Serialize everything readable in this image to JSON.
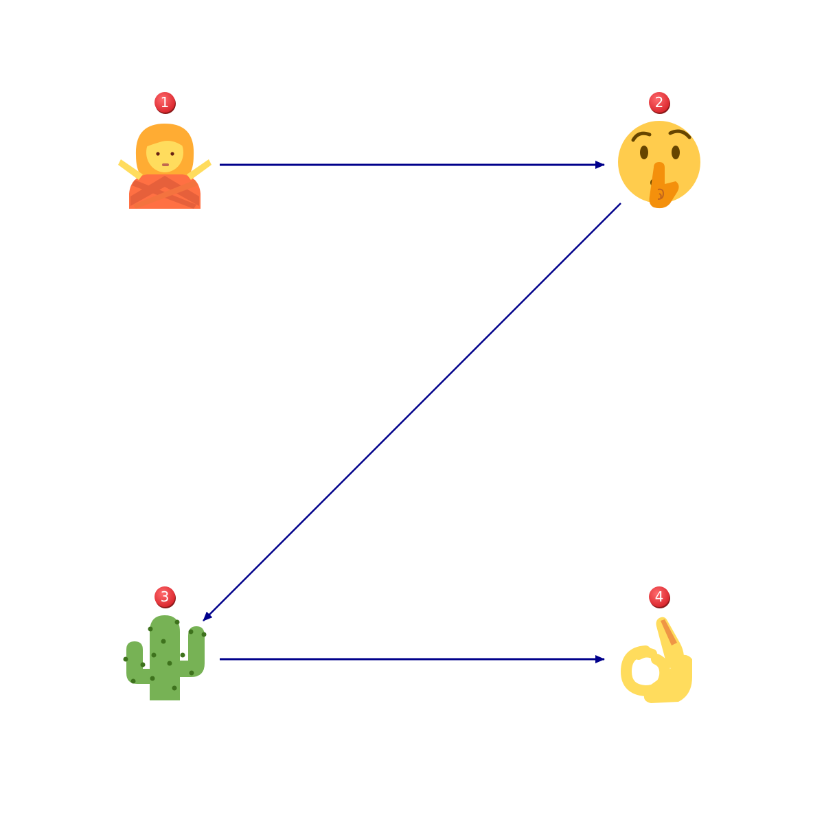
{
  "diagram": {
    "nodes": [
      {
        "id": "1",
        "badge": "1",
        "icon": "person-gesturing-no-icon"
      },
      {
        "id": "2",
        "badge": "2",
        "icon": "shushing-face-icon"
      },
      {
        "id": "3",
        "badge": "3",
        "icon": "cactus-icon"
      },
      {
        "id": "4",
        "badge": "4",
        "icon": "ok-hand-icon"
      }
    ],
    "edges": [
      {
        "from": "1",
        "to": "2"
      },
      {
        "from": "2",
        "to": "3"
      },
      {
        "from": "3",
        "to": "4"
      }
    ],
    "colors": {
      "edge": "#00008b",
      "badge": "#e8363b"
    }
  }
}
